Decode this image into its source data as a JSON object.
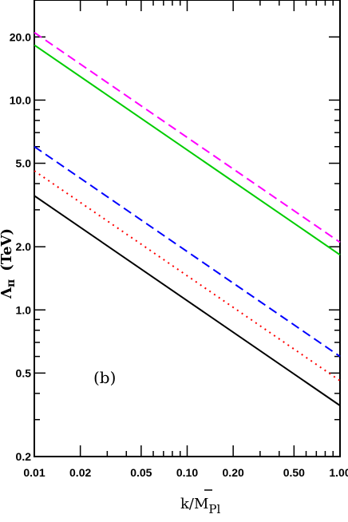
{
  "chart_data": {
    "type": "line",
    "xscale": "log",
    "yscale": "log",
    "xlim": [
      0.01,
      1.0
    ],
    "ylim": [
      0.2,
      30.0
    ],
    "xlabel": "k/M̄Pl",
    "xlabel_main": "k/",
    "xlabel_m": "M",
    "xlabel_sub": "Pl",
    "ylabel": "Λπ (TeV)",
    "ylabel_main": "Λ",
    "ylabel_sub": "π",
    "ylabel_unit": "(TeV)",
    "annotation": "(b)",
    "x_ticks": [
      {
        "value": 0.01,
        "label": "0.01"
      },
      {
        "value": 0.02,
        "label": "0.02"
      },
      {
        "value": 0.05,
        "label": "0.05"
      },
      {
        "value": 0.1,
        "label": "0.10"
      },
      {
        "value": 0.2,
        "label": "0.20"
      },
      {
        "value": 0.5,
        "label": "0.50"
      },
      {
        "value": 1.0,
        "label": "1.00"
      }
    ],
    "y_ticks": [
      {
        "value": 0.2,
        "label": "0.2"
      },
      {
        "value": 0.5,
        "label": "0.5"
      },
      {
        "value": 1.0,
        "label": "1.0"
      },
      {
        "value": 2.0,
        "label": "2.0"
      },
      {
        "value": 5.0,
        "label": "5.0"
      },
      {
        "value": 10.0,
        "label": "10.0"
      },
      {
        "value": 20.0,
        "label": "20.0"
      }
    ],
    "series": [
      {
        "x": [
          0.01,
          1.0
        ],
        "y": [
          21.0,
          2.1
        ],
        "color": "#ff00ff",
        "dash": "dashed"
      },
      {
        "x": [
          0.01,
          1.0
        ],
        "y": [
          18.3,
          1.83
        ],
        "color": "#00cc00",
        "dash": "solid"
      },
      {
        "x": [
          0.01,
          1.0
        ],
        "y": [
          6.0,
          0.6
        ],
        "color": "#0000ff",
        "dash": "dashed"
      },
      {
        "x": [
          0.01,
          1.0
        ],
        "y": [
          4.6,
          0.46
        ],
        "color": "#ff0000",
        "dash": "dotted"
      },
      {
        "x": [
          0.01,
          1.0
        ],
        "y": [
          3.5,
          0.35
        ],
        "color": "#000000",
        "dash": "solid"
      }
    ],
    "grid": false,
    "legend": "none"
  }
}
